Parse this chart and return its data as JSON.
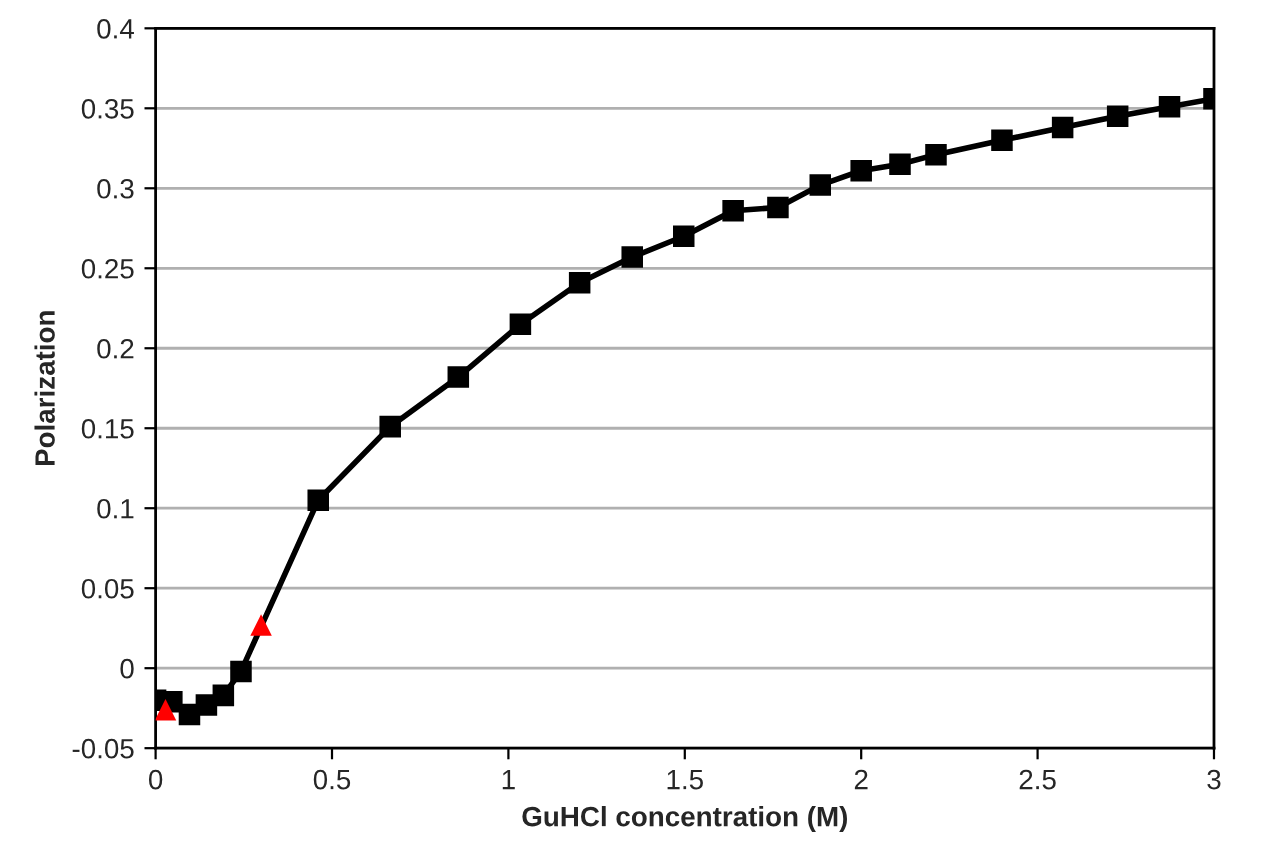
{
  "chart_data": {
    "type": "line",
    "xlabel": "GuHCl concentration (M)",
    "ylabel": "Polarization",
    "xlim": [
      0,
      3
    ],
    "xticks": [
      0,
      0.5,
      1,
      1.5,
      2,
      2.5,
      3
    ],
    "ylim": [
      -0.05,
      0.4
    ],
    "yticks": [
      -0.05,
      0,
      0.05,
      0.1,
      0.15,
      0.2,
      0.25,
      0.3,
      0.35,
      0.4
    ],
    "grid": "y",
    "legend": false,
    "series": [
      {
        "color": "#000000",
        "marker": "square",
        "line_style": "solid",
        "x": [
          0,
          0.046,
          0.096,
          0.144,
          0.192,
          0.242,
          0.461,
          0.665,
          0.858,
          1.034,
          1.202,
          1.351,
          1.497,
          1.637,
          1.764,
          1.884,
          2.0,
          2.11,
          2.212,
          2.399,
          2.571,
          2.727,
          2.874,
          3.0
        ],
        "values": [
          -0.02,
          -0.021,
          -0.029,
          -0.023,
          -0.017,
          -0.002,
          0.105,
          0.151,
          0.182,
          0.215,
          0.241,
          0.257,
          0.27,
          0.286,
          0.288,
          0.302,
          0.311,
          0.315,
          0.321,
          0.33,
          0.338,
          0.345,
          0.351,
          0.356
        ]
      },
      {
        "type": "scatter",
        "color": "#ff0000",
        "marker": "triangle",
        "x": [
          0.028,
          0.299
        ],
        "values": [
          -0.026,
          0.027
        ]
      }
    ]
  }
}
